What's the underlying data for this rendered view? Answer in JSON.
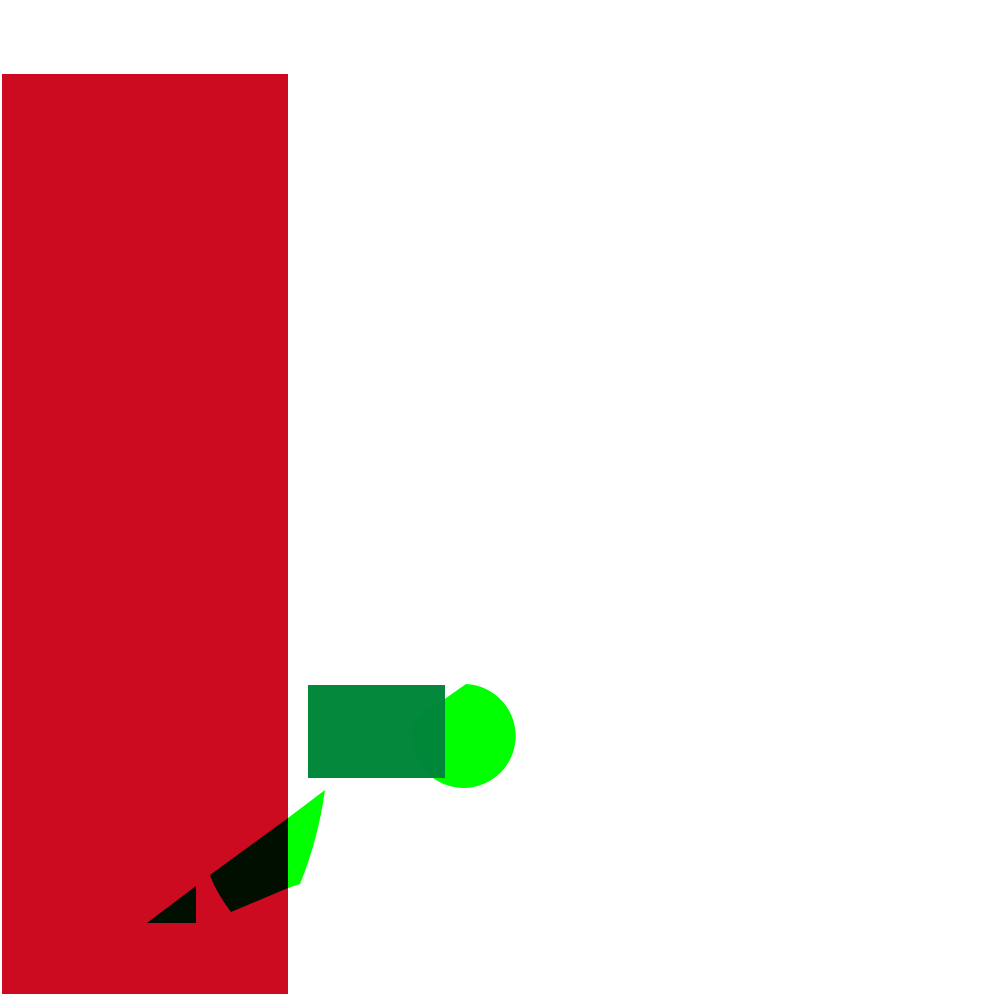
{
  "background": "#ffffff",
  "shapes": {
    "red_bar": {
      "color": "#cc0b20"
    },
    "green_rectangle": {
      "color": "#00873a",
      "opacity": 0.99
    },
    "green_circle": {
      "color": "#00ff00"
    },
    "green_wedge": {
      "color": "#00ff00"
    },
    "dark_stroke_upper": {
      "color": "#000f00"
    },
    "dark_stroke_lower": {
      "color": "#000f00"
    }
  }
}
